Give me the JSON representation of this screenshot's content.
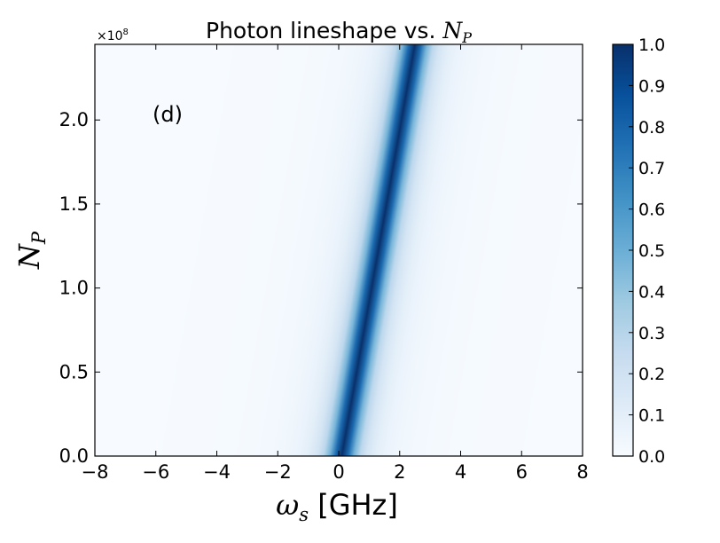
{
  "chart_data": {
    "type": "heatmap",
    "title_prefix": "Photon lineshape vs. ",
    "title_math": "N",
    "title_math_sub": "P",
    "xlabel_math": "ω",
    "xlabel_math_sub": "s",
    "xlabel_text": " [GHz]",
    "ylabel_math": "N",
    "ylabel_math_sub": "P",
    "y_offset_text": "×10",
    "y_offset_exp": "8",
    "annotation": "(d)",
    "xlim": [
      -8,
      8
    ],
    "ylim": [
      0,
      2.45
    ],
    "x_ticks": [
      -8,
      -6,
      -4,
      -2,
      0,
      2,
      4,
      6,
      8
    ],
    "x_tick_labels": [
      "−8",
      "−6",
      "−4",
      "−2",
      "0",
      "2",
      "4",
      "6",
      "8"
    ],
    "y_ticks": [
      0.0,
      0.5,
      1.0,
      1.5,
      2.0
    ],
    "y_tick_labels": [
      "0.0",
      "0.5",
      "1.0",
      "1.5",
      "2.0"
    ],
    "peak_center_at_y0": 0.1,
    "peak_center_at_ymax": 2.5,
    "peak_width_ghz": 0.75,
    "colormap": "Blues",
    "colorbar": {
      "range": [
        0.0,
        1.0
      ],
      "ticks": [
        0.0,
        0.1,
        0.2,
        0.3,
        0.4,
        0.5,
        0.6,
        0.7,
        0.8,
        0.9,
        1.0
      ],
      "tick_labels": [
        "0.0",
        "0.1",
        "0.2",
        "0.3",
        "0.4",
        "0.5",
        "0.6",
        "0.7",
        "0.8",
        "0.9",
        "1.0"
      ]
    },
    "colors": {
      "low": "#f7fbff",
      "mid": "#6baed6",
      "high": "#08306b"
    }
  }
}
